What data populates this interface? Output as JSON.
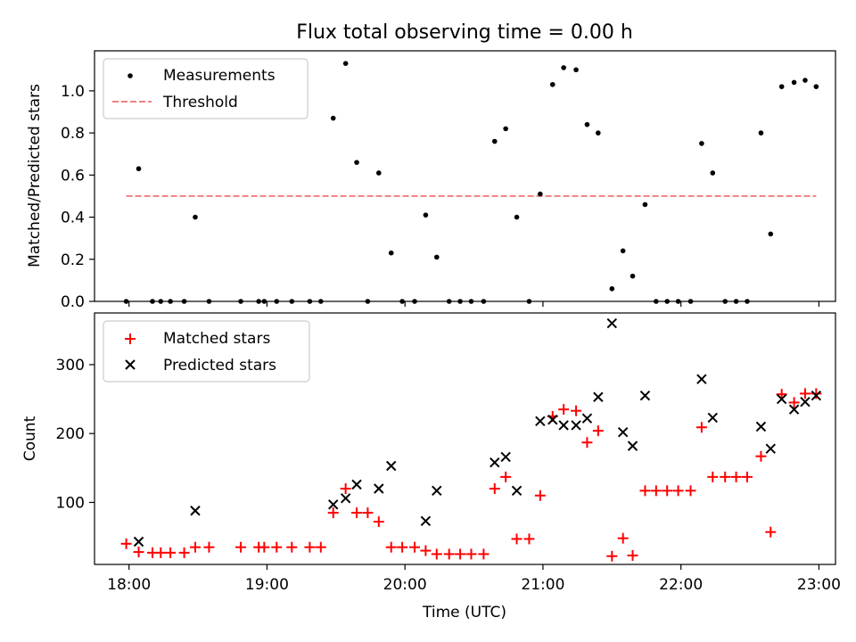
{
  "title": "Flux total observing time = 0.00 h",
  "chart_data": [
    {
      "type": "scatter",
      "ylabel": "Matched/Predicted stars",
      "xlim": [
        17.75,
        23.12
      ],
      "ylim": [
        0,
        1.19
      ],
      "yticks": [
        0.0,
        0.2,
        0.4,
        0.6,
        0.8,
        1.0
      ],
      "ytick_labels": [
        "0.0",
        "0.2",
        "0.4",
        "0.6",
        "0.8",
        "1.0"
      ],
      "legend_position": "top-left",
      "colors": {
        "measurements": "#000000",
        "threshold": "#f08080"
      },
      "series": [
        {
          "name": "Measurements",
          "marker": "dot",
          "x": [
            17.98,
            18.07,
            18.17,
            18.23,
            18.3,
            18.4,
            18.48,
            18.58,
            18.81,
            18.94,
            18.98,
            19.07,
            19.18,
            19.31,
            19.39,
            19.48,
            19.57,
            19.65,
            19.73,
            19.81,
            19.9,
            19.98,
            20.07,
            20.15,
            20.23,
            20.32,
            20.4,
            20.48,
            20.57,
            20.65,
            20.73,
            20.81,
            20.9,
            20.98,
            21.07,
            21.15,
            21.24,
            21.32,
            21.4,
            21.5,
            21.58,
            21.65,
            21.74,
            21.82,
            21.9,
            21.98,
            22.07,
            22.15,
            22.23,
            22.32,
            22.4,
            22.48,
            22.58,
            22.65,
            22.73,
            22.82,
            22.9,
            22.98
          ],
          "y": [
            0.0,
            0.63,
            0.0,
            0.0,
            0.0,
            0.0,
            0.4,
            0.0,
            0.0,
            0.0,
            0.0,
            0.0,
            0.0,
            0.0,
            0.0,
            0.87,
            1.13,
            0.66,
            0.0,
            0.61,
            0.23,
            0.0,
            0.0,
            0.41,
            0.21,
            0.0,
            0.0,
            0.0,
            0.0,
            0.76,
            0.82,
            0.4,
            0.0,
            0.51,
            1.03,
            1.11,
            1.1,
            0.84,
            0.8,
            0.06,
            0.24,
            0.12,
            0.46,
            0.0,
            0.0,
            0.0,
            0.0,
            0.75,
            0.61,
            0.0,
            0.0,
            0.0,
            0.8,
            0.32,
            1.02,
            1.04,
            1.05,
            1.02
          ]
        },
        {
          "name": "Threshold",
          "style": "dashed",
          "x": [
            17.98,
            22.98
          ],
          "y": [
            0.5,
            0.5
          ]
        }
      ]
    },
    {
      "type": "scatter",
      "xlabel": "Time (UTC)",
      "ylabel": "Count",
      "xlim": [
        17.75,
        23.12
      ],
      "ylim": [
        10,
        375
      ],
      "yticks": [
        100,
        200,
        300
      ],
      "ytick_labels": [
        "100",
        "200",
        "300"
      ],
      "xticks": [
        18,
        19,
        20,
        21,
        22,
        23
      ],
      "xtick_labels": [
        "18:00",
        "19:00",
        "20:00",
        "21:00",
        "22:00",
        "23:00"
      ],
      "legend_position": "top-left",
      "colors": {
        "matched": "#ff0000",
        "predicted": "#000000"
      },
      "series": [
        {
          "name": "Matched stars",
          "marker": "plus",
          "x": [
            17.98,
            18.07,
            18.17,
            18.23,
            18.3,
            18.4,
            18.48,
            18.58,
            18.81,
            18.94,
            18.98,
            19.07,
            19.18,
            19.31,
            19.39,
            19.48,
            19.57,
            19.65,
            19.73,
            19.81,
            19.9,
            19.98,
            20.07,
            20.15,
            20.23,
            20.32,
            20.4,
            20.48,
            20.57,
            20.65,
            20.73,
            20.81,
            20.9,
            20.98,
            21.07,
            21.15,
            21.24,
            21.32,
            21.4,
            21.5,
            21.58,
            21.65,
            21.74,
            21.82,
            21.9,
            21.98,
            22.07,
            22.15,
            22.23,
            22.32,
            22.4,
            22.48,
            22.58,
            22.65,
            22.73,
            22.82,
            22.9,
            22.98
          ],
          "y": [
            40,
            28,
            27,
            27,
            27,
            27,
            35,
            35,
            35,
            35,
            35,
            35,
            35,
            35,
            35,
            85,
            120,
            85,
            85,
            72,
            35,
            35,
            35,
            30,
            25,
            25,
            25,
            25,
            25,
            120,
            137,
            47,
            47,
            110,
            225,
            235,
            233,
            187,
            204,
            22,
            48,
            23,
            117,
            117,
            117,
            117,
            117,
            209,
            137,
            137,
            137,
            137,
            167,
            57,
            257,
            245,
            258,
            258
          ]
        },
        {
          "name": "Predicted stars",
          "marker": "x",
          "x": [
            18.07,
            18.48,
            19.48,
            19.57,
            19.65,
            19.81,
            19.9,
            20.15,
            20.23,
            20.65,
            20.73,
            20.81,
            20.98,
            21.07,
            21.15,
            21.24,
            21.32,
            21.4,
            21.5,
            21.58,
            21.65,
            21.74,
            22.15,
            22.23,
            22.58,
            22.65,
            22.73,
            22.82,
            22.9,
            22.98
          ],
          "y": [
            43,
            88,
            97,
            106,
            126,
            120,
            153,
            73,
            117,
            158,
            166,
            117,
            218,
            220,
            212,
            212,
            222,
            253,
            360,
            202,
            182,
            255,
            279,
            223,
            210,
            178,
            250,
            235,
            246,
            255
          ]
        }
      ]
    }
  ]
}
